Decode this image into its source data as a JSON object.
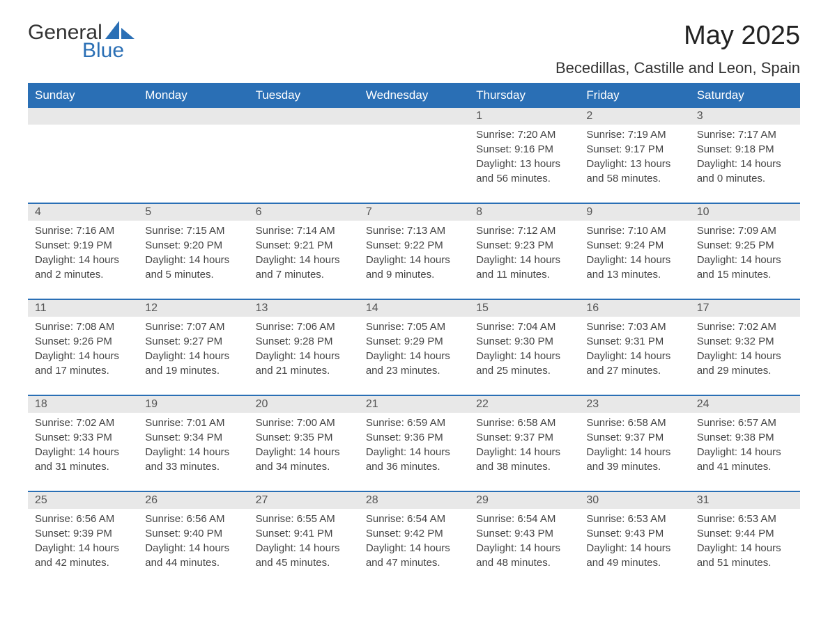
{
  "logo": {
    "text1": "General",
    "text2": "Blue",
    "icon_color": "#2a6fb5"
  },
  "title": "May 2025",
  "location": "Becedillas, Castille and Leon, Spain",
  "colors": {
    "header_bg": "#2a6fb5",
    "header_text": "#ffffff",
    "daynum_bg": "#e8e8e8",
    "row_border": "#2a6fb5",
    "body_text": "#444444",
    "background": "#ffffff"
  },
  "typography": {
    "title_fontsize": 38,
    "location_fontsize": 22,
    "header_fontsize": 17,
    "daynum_fontsize": 16,
    "content_fontsize": 15
  },
  "weekdays": [
    "Sunday",
    "Monday",
    "Tuesday",
    "Wednesday",
    "Thursday",
    "Friday",
    "Saturday"
  ],
  "weeks": [
    [
      {
        "empty": true
      },
      {
        "empty": true
      },
      {
        "empty": true
      },
      {
        "empty": true
      },
      {
        "num": "1",
        "sunrise": "Sunrise: 7:20 AM",
        "sunset": "Sunset: 9:16 PM",
        "daylight": "Daylight: 13 hours and 56 minutes."
      },
      {
        "num": "2",
        "sunrise": "Sunrise: 7:19 AM",
        "sunset": "Sunset: 9:17 PM",
        "daylight": "Daylight: 13 hours and 58 minutes."
      },
      {
        "num": "3",
        "sunrise": "Sunrise: 7:17 AM",
        "sunset": "Sunset: 9:18 PM",
        "daylight": "Daylight: 14 hours and 0 minutes."
      }
    ],
    [
      {
        "num": "4",
        "sunrise": "Sunrise: 7:16 AM",
        "sunset": "Sunset: 9:19 PM",
        "daylight": "Daylight: 14 hours and 2 minutes."
      },
      {
        "num": "5",
        "sunrise": "Sunrise: 7:15 AM",
        "sunset": "Sunset: 9:20 PM",
        "daylight": "Daylight: 14 hours and 5 minutes."
      },
      {
        "num": "6",
        "sunrise": "Sunrise: 7:14 AM",
        "sunset": "Sunset: 9:21 PM",
        "daylight": "Daylight: 14 hours and 7 minutes."
      },
      {
        "num": "7",
        "sunrise": "Sunrise: 7:13 AM",
        "sunset": "Sunset: 9:22 PM",
        "daylight": "Daylight: 14 hours and 9 minutes."
      },
      {
        "num": "8",
        "sunrise": "Sunrise: 7:12 AM",
        "sunset": "Sunset: 9:23 PM",
        "daylight": "Daylight: 14 hours and 11 minutes."
      },
      {
        "num": "9",
        "sunrise": "Sunrise: 7:10 AM",
        "sunset": "Sunset: 9:24 PM",
        "daylight": "Daylight: 14 hours and 13 minutes."
      },
      {
        "num": "10",
        "sunrise": "Sunrise: 7:09 AM",
        "sunset": "Sunset: 9:25 PM",
        "daylight": "Daylight: 14 hours and 15 minutes."
      }
    ],
    [
      {
        "num": "11",
        "sunrise": "Sunrise: 7:08 AM",
        "sunset": "Sunset: 9:26 PM",
        "daylight": "Daylight: 14 hours and 17 minutes."
      },
      {
        "num": "12",
        "sunrise": "Sunrise: 7:07 AM",
        "sunset": "Sunset: 9:27 PM",
        "daylight": "Daylight: 14 hours and 19 minutes."
      },
      {
        "num": "13",
        "sunrise": "Sunrise: 7:06 AM",
        "sunset": "Sunset: 9:28 PM",
        "daylight": "Daylight: 14 hours and 21 minutes."
      },
      {
        "num": "14",
        "sunrise": "Sunrise: 7:05 AM",
        "sunset": "Sunset: 9:29 PM",
        "daylight": "Daylight: 14 hours and 23 minutes."
      },
      {
        "num": "15",
        "sunrise": "Sunrise: 7:04 AM",
        "sunset": "Sunset: 9:30 PM",
        "daylight": "Daylight: 14 hours and 25 minutes."
      },
      {
        "num": "16",
        "sunrise": "Sunrise: 7:03 AM",
        "sunset": "Sunset: 9:31 PM",
        "daylight": "Daylight: 14 hours and 27 minutes."
      },
      {
        "num": "17",
        "sunrise": "Sunrise: 7:02 AM",
        "sunset": "Sunset: 9:32 PM",
        "daylight": "Daylight: 14 hours and 29 minutes."
      }
    ],
    [
      {
        "num": "18",
        "sunrise": "Sunrise: 7:02 AM",
        "sunset": "Sunset: 9:33 PM",
        "daylight": "Daylight: 14 hours and 31 minutes."
      },
      {
        "num": "19",
        "sunrise": "Sunrise: 7:01 AM",
        "sunset": "Sunset: 9:34 PM",
        "daylight": "Daylight: 14 hours and 33 minutes."
      },
      {
        "num": "20",
        "sunrise": "Sunrise: 7:00 AM",
        "sunset": "Sunset: 9:35 PM",
        "daylight": "Daylight: 14 hours and 34 minutes."
      },
      {
        "num": "21",
        "sunrise": "Sunrise: 6:59 AM",
        "sunset": "Sunset: 9:36 PM",
        "daylight": "Daylight: 14 hours and 36 minutes."
      },
      {
        "num": "22",
        "sunrise": "Sunrise: 6:58 AM",
        "sunset": "Sunset: 9:37 PM",
        "daylight": "Daylight: 14 hours and 38 minutes."
      },
      {
        "num": "23",
        "sunrise": "Sunrise: 6:58 AM",
        "sunset": "Sunset: 9:37 PM",
        "daylight": "Daylight: 14 hours and 39 minutes."
      },
      {
        "num": "24",
        "sunrise": "Sunrise: 6:57 AM",
        "sunset": "Sunset: 9:38 PM",
        "daylight": "Daylight: 14 hours and 41 minutes."
      }
    ],
    [
      {
        "num": "25",
        "sunrise": "Sunrise: 6:56 AM",
        "sunset": "Sunset: 9:39 PM",
        "daylight": "Daylight: 14 hours and 42 minutes."
      },
      {
        "num": "26",
        "sunrise": "Sunrise: 6:56 AM",
        "sunset": "Sunset: 9:40 PM",
        "daylight": "Daylight: 14 hours and 44 minutes."
      },
      {
        "num": "27",
        "sunrise": "Sunrise: 6:55 AM",
        "sunset": "Sunset: 9:41 PM",
        "daylight": "Daylight: 14 hours and 45 minutes."
      },
      {
        "num": "28",
        "sunrise": "Sunrise: 6:54 AM",
        "sunset": "Sunset: 9:42 PM",
        "daylight": "Daylight: 14 hours and 47 minutes."
      },
      {
        "num": "29",
        "sunrise": "Sunrise: 6:54 AM",
        "sunset": "Sunset: 9:43 PM",
        "daylight": "Daylight: 14 hours and 48 minutes."
      },
      {
        "num": "30",
        "sunrise": "Sunrise: 6:53 AM",
        "sunset": "Sunset: 9:43 PM",
        "daylight": "Daylight: 14 hours and 49 minutes."
      },
      {
        "num": "31",
        "sunrise": "Sunrise: 6:53 AM",
        "sunset": "Sunset: 9:44 PM",
        "daylight": "Daylight: 14 hours and 51 minutes."
      }
    ]
  ]
}
